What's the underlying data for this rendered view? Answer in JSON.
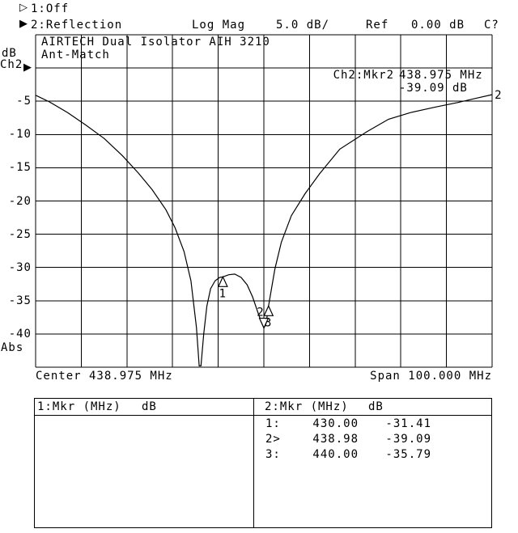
{
  "colors": {
    "ink": "#000000",
    "background": "#ffffff"
  },
  "header": {
    "ch1": {
      "indicator": "▷",
      "label": "1:Off"
    },
    "ch2": {
      "indicator": "▶",
      "label": "2:Reflection",
      "format": "Log Mag",
      "scale": "5.0 dB/",
      "ref_label": "Ref",
      "ref_value": "0.00 dB",
      "cal_status": "C?"
    }
  },
  "left_axis": {
    "unit": "dB",
    "channel": "Ch2",
    "channel_indicator": "▶",
    "bottom_label": "Abs"
  },
  "readout": {
    "label": "Ch2:Mkr2",
    "freq": "438.975 MHz",
    "value": "-39.09 dB"
  },
  "x_labels": {
    "center": "Center 438.975 MHz",
    "span": "Span 100.000 MHz"
  },
  "chart_data": {
    "type": "line",
    "title": "AIRTECH Dual Isolator AIH 3210",
    "subtitle": "Ant-Match",
    "grid": "on",
    "x_axis": {
      "center_mhz": 438.975,
      "span_mhz": 100.0,
      "min_mhz": 388.975,
      "max_mhz": 488.975,
      "mhz_per_div": 10,
      "divisions": 10
    },
    "y_axis": {
      "unit": "dB",
      "scale_db_per_div": 5.0,
      "ref_db": 0.0,
      "top_db": 5,
      "bottom_db": -45,
      "divisions": 10,
      "tick_labels": [
        -5,
        -10,
        -15,
        -20,
        -25,
        -30,
        -35,
        -40
      ]
    },
    "trace": {
      "name": "Ch2 Reflection Log Mag",
      "end_label": "2",
      "points_mhz_db": [
        [
          389.0,
          -4.1
        ],
        [
          392.0,
          -5.1
        ],
        [
          396.0,
          -6.7
        ],
        [
          400.0,
          -8.6
        ],
        [
          404.0,
          -10.6
        ],
        [
          408.0,
          -13.2
        ],
        [
          411.5,
          -15.8
        ],
        [
          414.5,
          -18.3
        ],
        [
          417.5,
          -21.3
        ],
        [
          419.5,
          -24.0
        ],
        [
          421.5,
          -27.6
        ],
        [
          423.0,
          -32.0
        ],
        [
          424.2,
          -39.0
        ],
        [
          424.8,
          -44.8
        ],
        [
          425.2,
          -44.8
        ],
        [
          425.8,
          -40.0
        ],
        [
          426.5,
          -35.8
        ],
        [
          427.3,
          -33.2
        ],
        [
          428.3,
          -32.0
        ],
        [
          429.3,
          -31.5
        ],
        [
          430.0,
          -31.41
        ],
        [
          431.3,
          -31.1
        ],
        [
          432.6,
          -31.0
        ],
        [
          434.0,
          -31.5
        ],
        [
          435.3,
          -32.6
        ],
        [
          436.5,
          -34.4
        ],
        [
          437.6,
          -36.6
        ],
        [
          438.4,
          -38.2
        ],
        [
          438.98,
          -39.09
        ],
        [
          439.4,
          -38.6
        ],
        [
          439.7,
          -37.3
        ],
        [
          440.0,
          -35.79
        ],
        [
          440.7,
          -33.0
        ],
        [
          441.4,
          -30.2
        ],
        [
          442.8,
          -26.2
        ],
        [
          445.0,
          -22.2
        ],
        [
          448.0,
          -18.9
        ],
        [
          451.2,
          -15.9
        ],
        [
          455.6,
          -12.2
        ],
        [
          461.5,
          -9.6
        ],
        [
          466.3,
          -7.7
        ],
        [
          471.1,
          -6.7
        ],
        [
          476.4,
          -5.9
        ],
        [
          481.4,
          -5.2
        ],
        [
          485.8,
          -4.5
        ],
        [
          489.0,
          -4.0
        ]
      ]
    },
    "markers": [
      {
        "id": "1",
        "freq_mhz": 430.0,
        "db": -31.41,
        "style": "normal"
      },
      {
        "id": "2",
        "freq_mhz": 438.98,
        "db": -39.09,
        "style": "active"
      },
      {
        "id": "3",
        "freq_mhz": 440.0,
        "db": -35.79,
        "style": "normal"
      }
    ]
  },
  "marker_table": {
    "left": {
      "header_title": "1:Mkr (MHz)",
      "header_unit": "dB",
      "rows": []
    },
    "right": {
      "header_title": "2:Mkr (MHz)",
      "header_unit": "dB",
      "rows": [
        {
          "label": "1:",
          "freq": "430.00",
          "db": "-31.41"
        },
        {
          "label": "2>",
          "freq": "438.98",
          "db": "-39.09"
        },
        {
          "label": "3:",
          "freq": "440.00",
          "db": "-35.79"
        }
      ]
    }
  }
}
